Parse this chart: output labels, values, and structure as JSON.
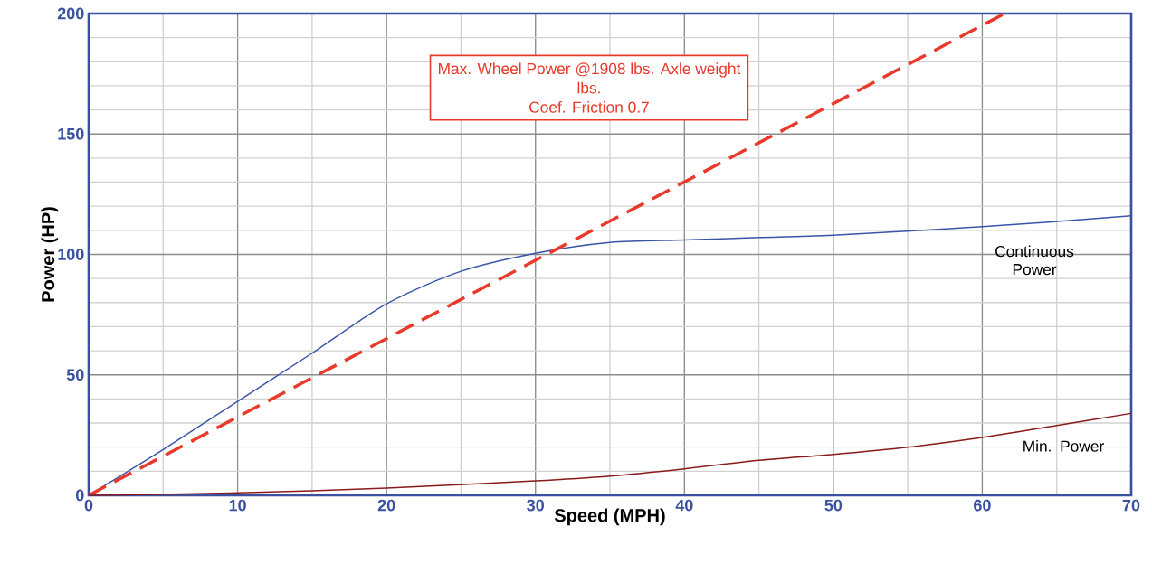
{
  "chart_data": {
    "type": "line",
    "xlabel": "Speed  (MPH)",
    "ylabel": "Power  (HP)",
    "xlim": [
      0,
      70
    ],
    "ylim": [
      0,
      200
    ],
    "xticks": [
      0,
      10,
      20,
      30,
      40,
      50,
      60,
      70
    ],
    "yticks": [
      0,
      50,
      100,
      150,
      200
    ],
    "grid": true,
    "marker": "none",
    "annotations": [
      "Max. Wheel Power @1908 lbs. Axle weight",
      "lbs.",
      "Coef. Friction 0.7"
    ],
    "series": [
      {
        "name": "Continuous Power",
        "color": "#3a55a8",
        "line_style": "solid",
        "x": [
          0,
          5,
          10,
          15,
          20,
          25,
          30,
          35,
          40,
          45,
          50,
          60,
          70
        ],
        "values": [
          0,
          19,
          39,
          59,
          79.5,
          93,
          100.5,
          105,
          106,
          107,
          108,
          111.5,
          116
        ]
      },
      {
        "color": "#e8392b",
        "line_style": "dashed",
        "x": [
          0,
          61.5
        ],
        "values": [
          0,
          200
        ]
      },
      {
        "name": "Min. Power",
        "color": "#8b1a1a",
        "line_style": "solid",
        "x": [
          0,
          10,
          20,
          30,
          35,
          40,
          45,
          50,
          55,
          60,
          65,
          70
        ],
        "values": [
          0,
          1,
          3,
          6,
          8,
          11,
          14.5,
          17,
          20,
          24,
          29,
          34
        ]
      }
    ]
  }
}
